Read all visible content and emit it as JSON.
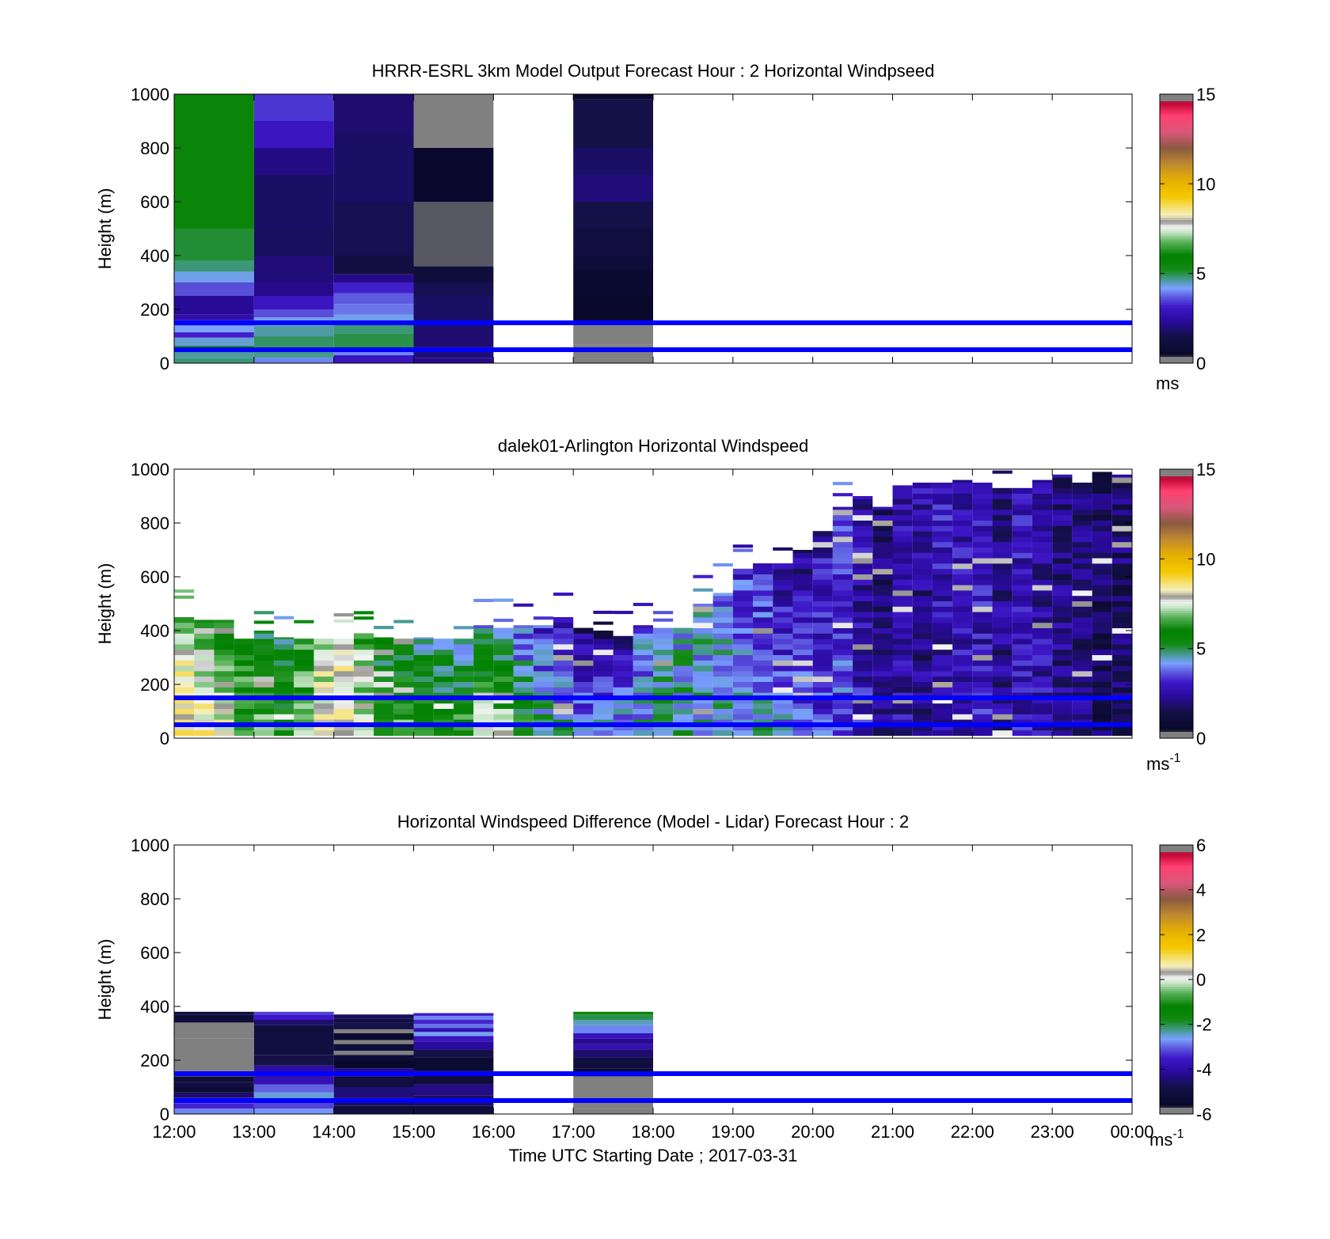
{
  "chart_data": [
    {
      "type": "heatmap",
      "title": "HRRR-ESRL 3km Model Output   Forecast Hour : 2 Horizontal Windpseed",
      "ylabel": "Height (m)",
      "xlabel": "",
      "ylim": [
        0,
        1000
      ],
      "yticks": [
        "0",
        "200",
        "400",
        "600",
        "800",
        "1000"
      ],
      "xticks": [
        "12:00",
        "13:00",
        "14:00",
        "15:00",
        "16:00",
        "17:00",
        "18:00",
        "19:00",
        "20:00",
        "21:00",
        "22:00",
        "23:00",
        "00:00"
      ],
      "x_tick_labels_visible": false,
      "colorbar": {
        "min": 0,
        "max": 15,
        "ticks": [
          "0",
          "5",
          "10",
          "15"
        ],
        "unit": "ms",
        "unit_sup": ""
      },
      "reference_lines_m": [
        50,
        150
      ],
      "reference_line_color": "#0000ff",
      "data_ceiling_m": 1000,
      "columns": [
        {
          "x_start": "12:00",
          "x_end": "13:00",
          "segments": [
            [
              0,
              20,
              4.8
            ],
            [
              20,
              40,
              4.6
            ],
            [
              40,
              65,
              5.2
            ],
            [
              65,
              95,
              4.4
            ],
            [
              95,
              115,
              3.2
            ],
            [
              115,
              140,
              4.2
            ],
            [
              140,
              160,
              3.4
            ],
            [
              160,
              180,
              2.6
            ],
            [
              180,
              250,
              2.3
            ],
            [
              250,
              300,
              3.6
            ],
            [
              300,
              340,
              4.3
            ],
            [
              340,
              380,
              4.8
            ],
            [
              380,
              500,
              5.1
            ],
            [
              500,
              1000,
              5.6
            ]
          ]
        },
        {
          "x_start": "13:00",
          "x_end": "14:00",
          "segments": [
            [
              0,
              20,
              4.0
            ],
            [
              20,
              40,
              4.7
            ],
            [
              40,
              60,
              5.1
            ],
            [
              60,
              100,
              4.9
            ],
            [
              100,
              140,
              4.6
            ],
            [
              140,
              170,
              4.3
            ],
            [
              170,
              200,
              3.6
            ],
            [
              200,
              250,
              3.0
            ],
            [
              250,
              300,
              2.2
            ],
            [
              300,
              400,
              2.0
            ],
            [
              400,
              500,
              1.7
            ],
            [
              500,
              700,
              1.8
            ],
            [
              700,
              800,
              2.1
            ],
            [
              800,
              900,
              3.0
            ],
            [
              900,
              1000,
              3.4
            ]
          ]
        },
        {
          "x_start": "14:00",
          "x_end": "15:00",
          "segments": [
            [
              0,
              30,
              3.0
            ],
            [
              30,
              50,
              4.0
            ],
            [
              50,
              110,
              5.0
            ],
            [
              110,
              150,
              4.8
            ],
            [
              150,
              180,
              4.3
            ],
            [
              180,
              220,
              3.9
            ],
            [
              220,
              260,
              3.7
            ],
            [
              260,
              300,
              3.2
            ],
            [
              300,
              330,
              2.2
            ],
            [
              330,
              400,
              1.3
            ],
            [
              400,
              600,
              1.6
            ],
            [
              600,
              850,
              1.8
            ],
            [
              850,
              1000,
              1.9
            ]
          ]
        },
        {
          "x_start": "15:00",
          "x_end": "16:00",
          "segments": [
            [
              0,
              20,
              2.2
            ],
            [
              20,
              60,
              2.0
            ],
            [
              60,
              150,
              1.9
            ],
            [
              150,
              250,
              1.8
            ],
            [
              250,
              300,
              1.6
            ],
            [
              300,
              360,
              1.1
            ],
            [
              360,
              600,
              0.4
            ],
            [
              600,
              800,
              0.6
            ],
            [
              800,
              1000,
              0.3
            ]
          ]
        },
        {
          "x_start": "17:00",
          "x_end": "18:00",
          "segments": [
            [
              0,
              15,
              -0.5
            ],
            [
              15,
              70,
              -0.5
            ],
            [
              70,
              150,
              0.3
            ],
            [
              150,
              250,
              0.5
            ],
            [
              250,
              350,
              0.7
            ],
            [
              350,
              400,
              1.0
            ],
            [
              400,
              500,
              1.2
            ],
            [
              500,
              600,
              1.5
            ],
            [
              600,
              700,
              2.0
            ],
            [
              700,
              800,
              1.8
            ],
            [
              800,
              980,
              1.5
            ],
            [
              980,
              1000,
              0.6
            ]
          ]
        }
      ]
    },
    {
      "type": "heatmap",
      "title": "dalek01-Arlington  Horizontal Windspeed",
      "ylabel": "Height (m)",
      "xlabel": "",
      "ylim": [
        0,
        1000
      ],
      "yticks": [
        "0",
        "200",
        "400",
        "600",
        "800",
        "1000"
      ],
      "xticks": [
        "12:00",
        "13:00",
        "14:00",
        "15:00",
        "16:00",
        "17:00",
        "18:00",
        "19:00",
        "20:00",
        "21:00",
        "22:00",
        "23:00",
        "00:00"
      ],
      "x_tick_labels_visible": false,
      "colorbar": {
        "min": 0,
        "max": 15,
        "ticks": [
          "0",
          "5",
          "10",
          "15"
        ],
        "unit": "ms",
        "unit_sup": "-1"
      },
      "reference_lines_m": [
        50,
        150
      ],
      "reference_line_color": "#0000ff",
      "slot_minutes": 15,
      "profile_tops_m": [
        450,
        440,
        440,
        370,
        400,
        375,
        370,
        370,
        370,
        390,
        375,
        370,
        375,
        370,
        370,
        420,
        410,
        420,
        420,
        450,
        410,
        400,
        380,
        420,
        410,
        410,
        500,
        540,
        630,
        650,
        650,
        700,
        770,
        860,
        900,
        860,
        940,
        950,
        950,
        960,
        950,
        930,
        930,
        960,
        980,
        950,
        990,
        980
      ],
      "profile_base_speed": [
        9.0,
        8.5,
        8.0,
        7.2,
        6.8,
        6.2,
        7.0,
        8.5,
        8.8,
        8.0,
        6.2,
        6.5,
        6.8,
        5.8,
        6.5,
        7.5,
        7.8,
        6.0,
        5.0,
        4.8,
        4.6,
        4.5,
        4.6,
        4.5,
        4.8,
        4.6,
        4.7,
        4.6,
        4.5,
        4.8,
        4.2,
        3.8,
        3.4,
        3.6,
        2.9,
        2.2,
        2.5,
        2.0,
        2.3,
        2.6,
        3.0,
        2.4,
        2.8,
        2.6,
        2.3,
        2.1,
        1.6,
        1.7
      ],
      "profile_top_speed": [
        7.0,
        6.0,
        6.5,
        5.5,
        5.2,
        5.0,
        6.0,
        7.0,
        7.5,
        6.5,
        5.0,
        4.8,
        4.6,
        4.8,
        4.5,
        4.2,
        4.4,
        3.5,
        3.2,
        2.5,
        1.8,
        1.6,
        2.3,
        3.8,
        4.6,
        4.4,
        4.2,
        3.8,
        3.2,
        2.8,
        2.4,
        2.2,
        2.6,
        3.2,
        2.4,
        2.0,
        2.8,
        2.5,
        3.0,
        2.8,
        2.6,
        2.3,
        2.9,
        2.4,
        2.1,
        2.0,
        1.7,
        1.8
      ]
    },
    {
      "type": "heatmap",
      "title": "Horizontal Windspeed Difference (Model - Lidar) Forecast Hour : 2",
      "ylabel": "Height (m)",
      "xlabel": "Time UTC  Starting Date ; 2017-03-31",
      "ylim": [
        0,
        1000
      ],
      "yticks": [
        "0",
        "200",
        "400",
        "600",
        "800",
        "1000"
      ],
      "xticks": [
        "12:00",
        "13:00",
        "14:00",
        "15:00",
        "16:00",
        "17:00",
        "18:00",
        "19:00",
        "20:00",
        "21:00",
        "22:00",
        "23:00",
        "00:00"
      ],
      "x_tick_labels_visible": true,
      "colorbar": {
        "min": -6,
        "max": 6,
        "ticks": [
          "-6",
          "-4",
          "-2",
          "0",
          "2",
          "4",
          "6"
        ],
        "unit": "ms",
        "unit_sup": "-1"
      },
      "reference_lines_m": [
        50,
        150
      ],
      "reference_line_color": "#0000ff",
      "columns": [
        {
          "x_start": "12:00",
          "x_end": "13:00",
          "segments": [
            [
              0,
              20,
              -2.8
            ],
            [
              20,
              40,
              -3.4
            ],
            [
              40,
              60,
              -3.0
            ],
            [
              60,
              80,
              -4.5
            ],
            [
              80,
              100,
              -5.3
            ],
            [
              100,
              120,
              -4.9
            ],
            [
              120,
              140,
              -5.2
            ],
            [
              140,
              160,
              -6.5
            ],
            [
              160,
              280,
              -6.5
            ],
            [
              280,
              340,
              -5.8
            ],
            [
              340,
              370,
              -5.2
            ],
            [
              370,
              380,
              -5.0
            ]
          ]
        },
        {
          "x_start": "13:00",
          "x_end": "14:00",
          "segments": [
            [
              0,
              20,
              -2.7
            ],
            [
              20,
              50,
              -3.2
            ],
            [
              50,
              80,
              -2.5
            ],
            [
              80,
              110,
              -3.0
            ],
            [
              110,
              150,
              -3.8
            ],
            [
              150,
              180,
              -4.0
            ],
            [
              180,
              220,
              -4.8
            ],
            [
              220,
              330,
              -5.0
            ],
            [
              330,
              350,
              -4.5
            ],
            [
              350,
              370,
              -3.5
            ],
            [
              370,
              380,
              -3.2
            ]
          ]
        },
        {
          "x_start": "14:00",
          "x_end": "15:00",
          "segments": [
            [
              0,
              30,
              -5.0
            ],
            [
              30,
              60,
              -4.7
            ],
            [
              60,
              100,
              -4.4
            ],
            [
              100,
              140,
              -5.0
            ],
            [
              140,
              170,
              -4.2
            ],
            [
              170,
              200,
              -5.5
            ],
            [
              200,
              220,
              -5.2
            ],
            [
              220,
              235,
              -6.3
            ],
            [
              235,
              260,
              -5.2
            ],
            [
              260,
              275,
              -6.3
            ],
            [
              275,
              300,
              -5.4
            ],
            [
              300,
              315,
              -6.3
            ],
            [
              315,
              340,
              -4.8
            ],
            [
              340,
              355,
              -5.0
            ],
            [
              355,
              370,
              -4.6
            ]
          ]
        },
        {
          "x_start": "15:00",
          "x_end": "16:00",
          "segments": [
            [
              0,
              30,
              -5.0
            ],
            [
              30,
              70,
              -4.6
            ],
            [
              70,
              110,
              -4.3
            ],
            [
              110,
              160,
              -5.2
            ],
            [
              160,
              210,
              -5.4
            ],
            [
              210,
              240,
              -4.8
            ],
            [
              240,
              270,
              -4.1
            ],
            [
              270,
              290,
              -3.6
            ],
            [
              290,
              305,
              -2.6
            ],
            [
              305,
              320,
              -3.8
            ],
            [
              320,
              335,
              -2.9
            ],
            [
              335,
              350,
              -3.4
            ],
            [
              350,
              365,
              -2.8
            ],
            [
              365,
              375,
              -3.5
            ]
          ]
        },
        {
          "x_start": "17:00",
          "x_end": "18:00",
          "segments": [
            [
              0,
              20,
              -6.5
            ],
            [
              20,
              140,
              -6.5
            ],
            [
              140,
              170,
              -5.5
            ],
            [
              170,
              210,
              -5.0
            ],
            [
              210,
              240,
              -4.5
            ],
            [
              240,
              260,
              -3.8
            ],
            [
              260,
              280,
              -4.2
            ],
            [
              280,
              300,
              -3.7
            ],
            [
              300,
              330,
              -2.8
            ],
            [
              330,
              350,
              -2.4
            ],
            [
              350,
              370,
              -2.0
            ],
            [
              370,
              380,
              -1.5
            ]
          ]
        }
      ]
    }
  ]
}
